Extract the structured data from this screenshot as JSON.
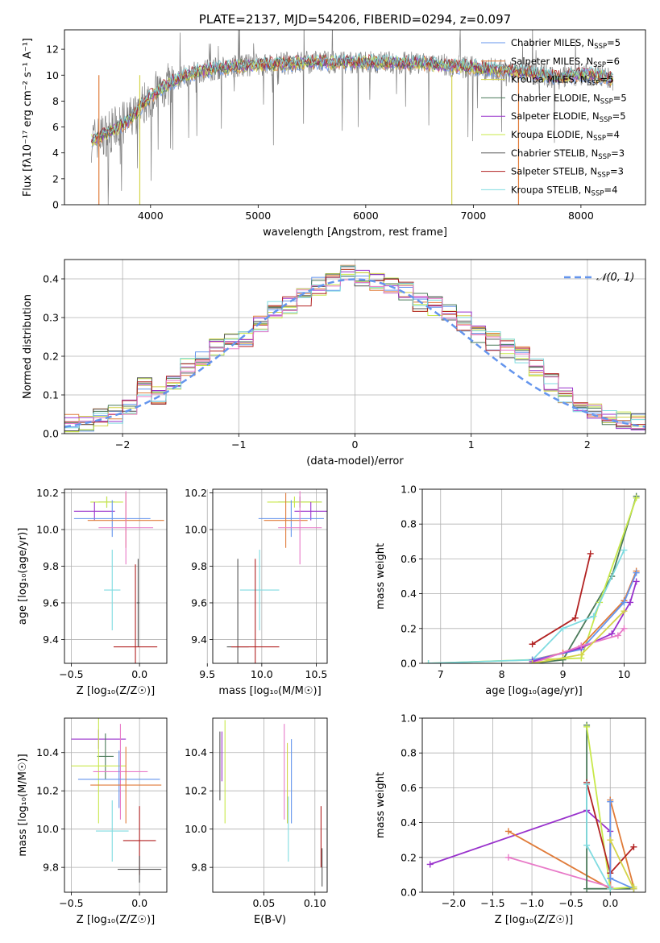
{
  "colors": {
    "chabrier_miles": "#6495ed",
    "salpeter_miles": "#e07b39",
    "kroupa_miles": "#d4d44a",
    "chabrier_elodie": "#4a7a5a",
    "salpeter_elodie": "#9932cc",
    "kroupa_elodie": "#c8e84a",
    "chabrier_stelib": "#555555",
    "salpeter_stelib": "#b22222",
    "kroupa_stelib": "#7fdbe0",
    "pink": "#e87ac8",
    "gray_data": "#808080",
    "gaussian": "#6495ed"
  },
  "chart_data": [
    {
      "id": "spectrum",
      "type": "line",
      "title": "PLATE=2137, MJD=54206, FIBERID=0294, z=0.097",
      "xlabel": "wavelength [Angstrom, rest frame]",
      "ylabel": "Flux [fλ10⁻¹⁷ erg cm⁻² s⁻¹ A⁻¹]",
      "xlim": [
        3200,
        8600
      ],
      "ylim": [
        0,
        13.5
      ],
      "xticks": [
        4000,
        5000,
        6000,
        7000,
        8000
      ],
      "yticks": [
        0,
        2,
        4,
        6,
        8,
        10,
        12
      ],
      "legend": "right",
      "continuum": {
        "x": [
          3450,
          3600,
          3800,
          4000,
          4200,
          4400,
          4600,
          4800,
          5000,
          5200,
          5500,
          6000,
          6500,
          7000,
          7500,
          7800,
          8000,
          8200,
          8300
        ],
        "y": [
          5.0,
          5.5,
          6.5,
          8.4,
          9.5,
          10.2,
          10.5,
          10.7,
          10.8,
          10.9,
          11.0,
          11.0,
          10.9,
          10.6,
          10.2,
          9.8,
          10.1,
          9.9,
          9.7
        ]
      },
      "series": [
        {
          "name": "Chabrier MILES, N_SSP=5",
          "color_key": "chabrier_miles"
        },
        {
          "name": "Salpeter MILES, N_SSP=6",
          "color_key": "salpeter_miles"
        },
        {
          "name": "Kroupa MILES, N_SSP=5",
          "color_key": "kroupa_miles"
        },
        {
          "name": "Chabrier ELODIE, N_SSP=5",
          "color_key": "chabrier_elodie"
        },
        {
          "name": "Salpeter ELODIE, N_SSP=5",
          "color_key": "salpeter_elodie"
        },
        {
          "name": "Kroupa ELODIE, N_SSP=4",
          "color_key": "kroupa_elodie"
        },
        {
          "name": "Chabrier STELIB, N_SSP=3",
          "color_key": "chabrier_stelib"
        },
        {
          "name": "Salpeter STELIB, N_SSP=3",
          "color_key": "salpeter_stelib"
        },
        {
          "name": "Kroupa STELIB, N_SSP=4",
          "color_key": "kroupa_stelib"
        }
      ]
    },
    {
      "id": "residuals",
      "type": "line",
      "xlabel": "(data-model)/error",
      "ylabel": "Normed distribution",
      "xlim": [
        -2.5,
        2.5
      ],
      "ylim": [
        0,
        0.45
      ],
      "xticks": [
        -2,
        -1,
        0,
        1,
        2
      ],
      "yticks": [
        0.0,
        0.1,
        0.2,
        0.3,
        0.4
      ],
      "legend": "top-right",
      "gaussian_label": "𝒩(0, 1)",
      "histogram_bins": 40,
      "histogram_centers": [
        -2.44,
        -2.31,
        -2.19,
        -2.06,
        -1.94,
        -1.81,
        -1.69,
        -1.56,
        -1.44,
        -1.31,
        -1.19,
        -1.06,
        -0.94,
        -0.81,
        -0.69,
        -0.56,
        -0.44,
        -0.31,
        -0.19,
        -0.06,
        0.06,
        0.19,
        0.31,
        0.44,
        0.56,
        0.69,
        0.81,
        0.94,
        1.06,
        1.19,
        1.31,
        1.44,
        1.56,
        1.69,
        1.81,
        1.94,
        2.06,
        2.19,
        2.31,
        2.44
      ],
      "histogram_values": [
        0.025,
        0.03,
        0.045,
        0.05,
        0.07,
        0.12,
        0.1,
        0.13,
        0.17,
        0.19,
        0.22,
        0.24,
        0.25,
        0.28,
        0.32,
        0.33,
        0.35,
        0.38,
        0.39,
        0.41,
        0.4,
        0.39,
        0.38,
        0.37,
        0.34,
        0.33,
        0.31,
        0.29,
        0.26,
        0.24,
        0.22,
        0.2,
        0.17,
        0.13,
        0.1,
        0.07,
        0.055,
        0.045,
        0.035,
        0.03
      ]
    },
    {
      "id": "age_vs_Z",
      "type": "scatter",
      "xlabel": "Z [log₁₀(Z/Z☉)]",
      "ylabel": "age  [log₁₀(age/yr)]",
      "xlim": [
        -0.55,
        0.2
      ],
      "ylim": [
        9.27,
        10.22
      ],
      "xticks": [
        -0.5,
        0.0
      ],
      "yticks": [
        9.4,
        9.6,
        9.8,
        10.0,
        10.2
      ],
      "points": [
        {
          "c": "chabrier_elodie",
          "x": -0.24,
          "xe": 0.06,
          "y": 10.15,
          "ye": 0.03
        },
        {
          "c": "kroupa_elodie",
          "x": -0.24,
          "xe": 0.12,
          "y": 10.15,
          "ye": 0.03
        },
        {
          "c": "salpeter_elodie",
          "x": -0.33,
          "xe": 0.15,
          "y": 10.1,
          "ye": 0.05
        },
        {
          "c": "chabrier_miles",
          "x": -0.2,
          "xe": 0.28,
          "y": 10.06,
          "ye": 0.1
        },
        {
          "c": "salpeter_miles",
          "x": -0.1,
          "xe": 0.28,
          "y": 10.05,
          "ye": 0.15
        },
        {
          "c": "pink",
          "x": -0.1,
          "xe": 0.2,
          "y": 10.01,
          "ye": 0.2
        },
        {
          "c": "kroupa_stelib",
          "x": -0.2,
          "xe": 0.06,
          "y": 9.67,
          "ye": 0.22
        },
        {
          "c": "chabrier_stelib",
          "x": -0.01,
          "xe": 0.01,
          "y": 9.6,
          "ye": 0.24
        },
        {
          "c": "salpeter_stelib",
          "x": -0.03,
          "xe": 0.16,
          "y": 9.36,
          "ye": 0.45
        }
      ]
    },
    {
      "id": "age_vs_mass",
      "type": "scatter",
      "xlabel": "mass [log₁₀(M/M☉)]",
      "xlim": [
        9.55,
        10.6
      ],
      "ylim": [
        9.27,
        10.22
      ],
      "xticks": [
        9.5,
        10.0,
        10.5
      ],
      "yticks": [
        9.4,
        9.6,
        9.8,
        10.0,
        10.2
      ],
      "points": [
        {
          "c": "chabrier_elodie",
          "x": 10.35,
          "xe": 0.2,
          "y": 10.15,
          "ye": 0.03
        },
        {
          "c": "kroupa_elodie",
          "x": 10.3,
          "xe": 0.25,
          "y": 10.15,
          "ye": 0.03
        },
        {
          "c": "salpeter_elodie",
          "x": 10.45,
          "xe": 0.15,
          "y": 10.1,
          "ye": 0.05
        },
        {
          "c": "chabrier_miles",
          "x": 10.27,
          "xe": 0.3,
          "y": 10.06,
          "ye": 0.1
        },
        {
          "c": "salpeter_miles",
          "x": 10.22,
          "xe": 0.2,
          "y": 10.05,
          "ye": 0.15
        },
        {
          "c": "pink",
          "x": 10.35,
          "xe": 0.2,
          "y": 10.01,
          "ye": 0.2
        },
        {
          "c": "kroupa_stelib",
          "x": 9.98,
          "xe": 0.18,
          "y": 9.67,
          "ye": 0.22
        },
        {
          "c": "chabrier_stelib",
          "x": 9.78,
          "xe": 0.1,
          "y": 9.36,
          "ye": 0.48
        },
        {
          "c": "salpeter_stelib",
          "x": 9.94,
          "xe": 0.22,
          "y": 9.36,
          "ye": 0.48
        }
      ]
    },
    {
      "id": "weight_vs_age",
      "type": "line",
      "xlabel": "age  [log₁₀(age/yr)]",
      "ylabel": "mass weight",
      "xlim": [
        6.7,
        10.35
      ],
      "ylim": [
        0,
        1
      ],
      "xticks": [
        7,
        8,
        9,
        10
      ],
      "yticks": [
        0.0,
        0.2,
        0.4,
        0.6,
        0.8,
        1.0
      ],
      "series": [
        {
          "c": "chabrier_elodie",
          "x": [
            8.5,
            9.0,
            9.8,
            10.2
          ],
          "y": [
            0.0,
            0.02,
            0.5,
            0.96
          ]
        },
        {
          "c": "kroupa_elodie",
          "x": [
            6.8,
            9.3,
            9.6,
            10.2
          ],
          "y": [
            0.0,
            0.03,
            0.35,
            0.95
          ]
        },
        {
          "c": "kroupa_stelib",
          "x": [
            6.8,
            8.5,
            9.0,
            9.5,
            10.0
          ],
          "y": [
            0.0,
            0.02,
            0.2,
            0.27,
            0.65
          ]
        },
        {
          "c": "salpeter_stelib",
          "x": [
            8.5,
            9.2,
            9.45
          ],
          "y": [
            0.11,
            0.26,
            0.63
          ]
        },
        {
          "c": "salpeter_miles",
          "x": [
            8.5,
            9.0,
            9.3,
            10.0,
            10.2
          ],
          "y": [
            0.02,
            0.06,
            0.1,
            0.36,
            0.53
          ]
        },
        {
          "c": "chabrier_miles",
          "x": [
            8.5,
            9.3,
            10.0,
            10.2
          ],
          "y": [
            0.02,
            0.08,
            0.35,
            0.52
          ]
        },
        {
          "c": "salpeter_elodie",
          "x": [
            8.5,
            9.3,
            9.8,
            10.1,
            10.2
          ],
          "y": [
            0.01,
            0.09,
            0.17,
            0.35,
            0.47
          ]
        },
        {
          "c": "pink",
          "x": [
            8.5,
            9.3,
            9.9,
            10.0
          ],
          "y": [
            0.0,
            0.1,
            0.16,
            0.2
          ]
        },
        {
          "c": "kroupa_miles",
          "x": [
            8.5,
            9.3,
            10.0
          ],
          "y": [
            0.0,
            0.05,
            0.3
          ]
        }
      ]
    },
    {
      "id": "mass_vs_Z",
      "type": "scatter",
      "xlabel": "Z [log₁₀(Z/Z☉)]",
      "ylabel": "mass [log₁₀(M/M☉)]",
      "xlim": [
        -0.55,
        0.2
      ],
      "ylim": [
        9.67,
        10.58
      ],
      "xticks": [
        -0.5,
        0.0
      ],
      "yticks": [
        9.8,
        10.0,
        10.2,
        10.4
      ],
      "points": [
        {
          "c": "salpeter_elodie",
          "x": -0.3,
          "xe": 0.2,
          "y": 10.47,
          "ye": 0.05
        },
        {
          "c": "chabrier_elodie",
          "x": -0.25,
          "xe": 0.06,
          "y": 10.38,
          "ye": 0.12
        },
        {
          "c": "kroupa_elodie",
          "x": -0.3,
          "xe": 0.2,
          "y": 10.33,
          "ye": 0.3
        },
        {
          "c": "pink",
          "x": -0.14,
          "xe": 0.2,
          "y": 10.3,
          "ye": 0.25
        },
        {
          "c": "chabrier_miles",
          "x": -0.15,
          "xe": 0.3,
          "y": 10.26,
          "ye": 0.15
        },
        {
          "c": "salpeter_miles",
          "x": -0.1,
          "xe": 0.26,
          "y": 10.23,
          "ye": 0.2
        },
        {
          "c": "kroupa_stelib",
          "x": -0.2,
          "xe": 0.12,
          "y": 9.99,
          "ye": 0.16
        },
        {
          "c": "salpeter_stelib",
          "x": 0.0,
          "xe": 0.12,
          "y": 9.94,
          "ye": 0.18
        },
        {
          "c": "chabrier_stelib",
          "x": 0.0,
          "xe": 0.16,
          "y": 9.79,
          "ye": 0.07
        }
      ]
    },
    {
      "id": "mass_vs_ebv",
      "type": "scatter",
      "xlabel": "E(B-V)",
      "xlim": [
        0.0,
        0.112
      ],
      "ylim": [
        9.67,
        10.58
      ],
      "xticks": [
        0.05,
        0.1
      ],
      "yticks": [
        9.8,
        10.0,
        10.2,
        10.4
      ],
      "points": [
        {
          "c": "chabrier_stelib",
          "x": 0.007,
          "y": 10.33,
          "ye": 0.18
        },
        {
          "c": "salpeter_elodie",
          "x": 0.009,
          "y": 10.38,
          "ye": 0.13
        },
        {
          "c": "kroupa_elodie",
          "x": 0.012,
          "y": 10.3,
          "ye": 0.27
        },
        {
          "c": "pink",
          "x": 0.07,
          "y": 10.3,
          "ye": 0.25
        },
        {
          "c": "kroupa_miles",
          "x": 0.073,
          "y": 10.24,
          "ye": 0.21
        },
        {
          "c": "kroupa_stelib",
          "x": 0.074,
          "y": 10.0,
          "ye": 0.17
        },
        {
          "c": "chabrier_miles",
          "x": 0.077,
          "y": 10.25,
          "ye": 0.22
        },
        {
          "c": "salpeter_stelib",
          "x": 0.106,
          "y": 9.96,
          "ye": 0.16
        },
        {
          "c": "chabrier_stelib",
          "x": 0.107,
          "y": 9.8,
          "ye": 0.1
        }
      ]
    },
    {
      "id": "weight_vs_Z",
      "type": "line",
      "xlabel": "Z [log₁₀(Z/Z☉)]",
      "ylabel": "mass weight",
      "xlim": [
        -2.4,
        0.45
      ],
      "ylim": [
        0,
        1
      ],
      "xticks": [
        -2.0,
        -1.5,
        -1.0,
        -0.5,
        0.0
      ],
      "yticks": [
        0.0,
        0.2,
        0.4,
        0.6,
        0.8,
        1.0
      ],
      "series": [
        {
          "c": "salpeter_elodie",
          "x": [
            -2.3,
            -0.3,
            0.0,
            0.0,
            0.3
          ],
          "y": [
            0.16,
            0.47,
            0.35,
            0.02,
            0.02
          ]
        },
        {
          "c": "salpeter_miles",
          "x": [
            -1.3,
            0.0,
            0.0,
            0.3
          ],
          "y": [
            0.35,
            0.02,
            0.53,
            0.03
          ]
        },
        {
          "c": "pink",
          "x": [
            -1.3,
            0.0,
            0.0
          ],
          "y": [
            0.2,
            0.03,
            0.02
          ]
        },
        {
          "c": "chabrier_elodie",
          "x": [
            -0.3,
            -0.3,
            0.0,
            0.3
          ],
          "y": [
            0.96,
            0.02,
            0.02,
            0.02
          ]
        },
        {
          "c": "kroupa_elodie",
          "x": [
            -0.3,
            0.0,
            0.3
          ],
          "y": [
            0.95,
            0.02,
            0.03
          ]
        },
        {
          "c": "salpeter_stelib",
          "x": [
            -0.3,
            0.0,
            0.3
          ],
          "y": [
            0.63,
            0.11,
            0.26
          ]
        },
        {
          "c": "kroupa_stelib",
          "x": [
            -0.3,
            -0.3,
            0.0
          ],
          "y": [
            0.62,
            0.27,
            0.02
          ]
        },
        {
          "c": "chabrier_miles",
          "x": [
            0.0,
            0.0,
            0.3
          ],
          "y": [
            0.52,
            0.08,
            0.02
          ]
        },
        {
          "c": "kroupa_miles",
          "x": [
            0.0,
            0.3
          ],
          "y": [
            0.3,
            0.02
          ]
        }
      ]
    }
  ]
}
